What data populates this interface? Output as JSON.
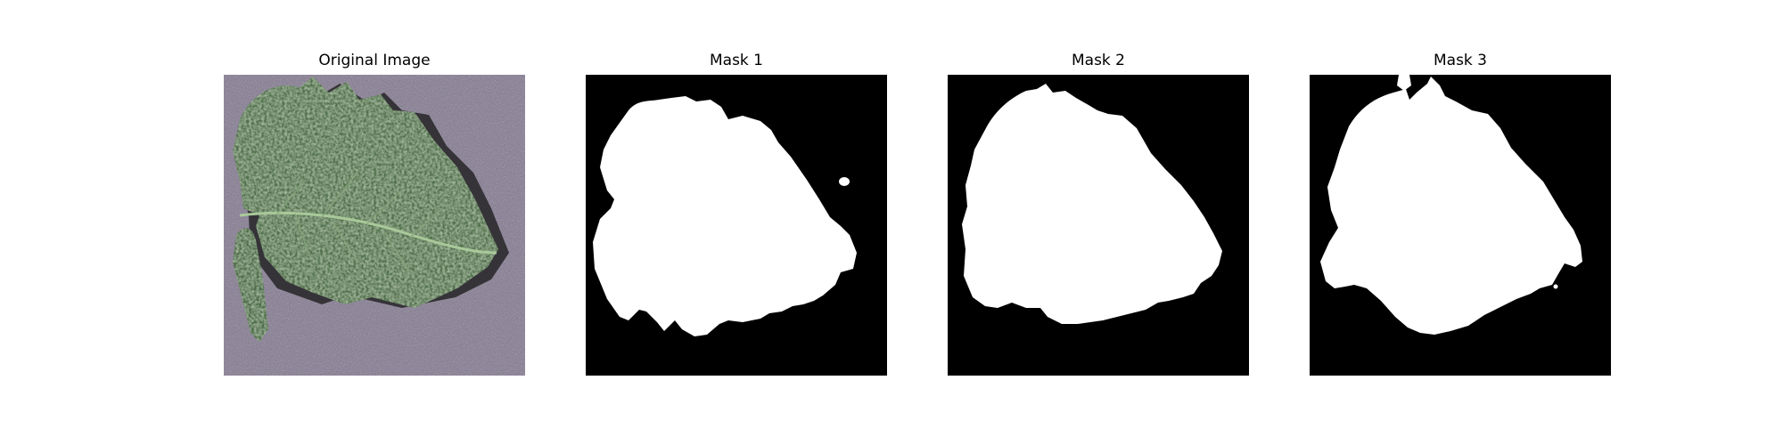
{
  "figure": {
    "panels": [
      {
        "title": "Original Image"
      },
      {
        "title": "Mask 1"
      },
      {
        "title": "Mask 2"
      },
      {
        "title": "Mask 3"
      }
    ]
  },
  "colors": {
    "background": "#ffffff",
    "photo_surface": "#8d8598",
    "leaf_dark": "#2e4a2c",
    "leaf_mid": "#4f6f4a",
    "leaf_light": "#9fbf92",
    "shadow": "#2b2a2e",
    "mask_background": "#000000",
    "mask_foreground": "#ffffff"
  }
}
